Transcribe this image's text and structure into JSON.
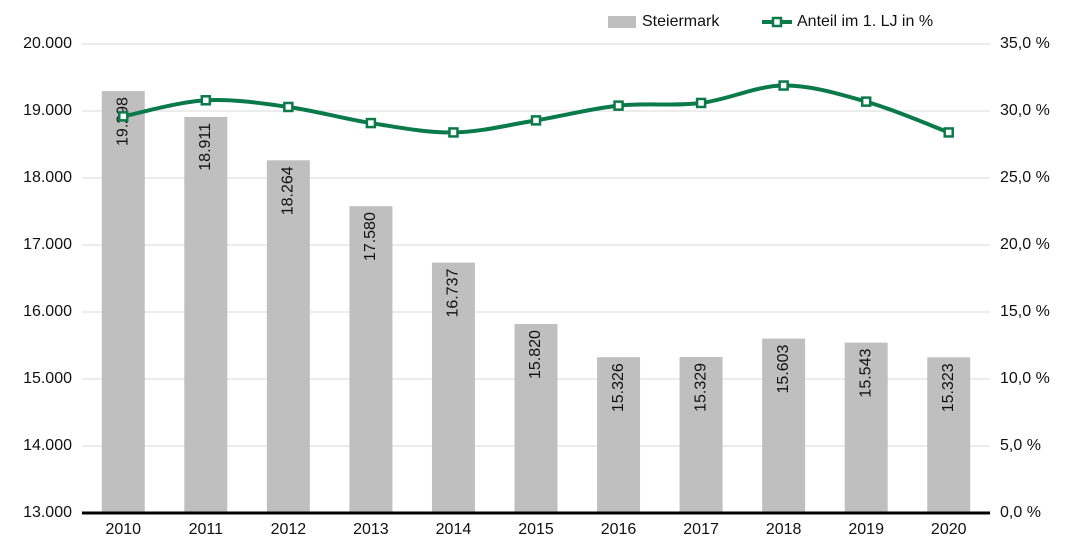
{
  "chart_data": {
    "type": "bar-line",
    "categories": [
      "2010",
      "2011",
      "2012",
      "2013",
      "2014",
      "2015",
      "2016",
      "2017",
      "2018",
      "2019",
      "2020"
    ],
    "series": [
      {
        "name": "Steiermark",
        "color": "#bfbfbf",
        "type": "bar",
        "values": [
          19298,
          18911,
          18264,
          17580,
          16737,
          15820,
          15326,
          15329,
          15603,
          15543,
          15323
        ],
        "value_labels": [
          "19.298",
          "18.911",
          "18.264",
          "17.580",
          "16.737",
          "15.820",
          "15.326",
          "15.329",
          "15.603",
          "15.543",
          "15.323"
        ]
      },
      {
        "name": "Anteil im 1. LJ in %",
        "color": "#0a7a4a",
        "type": "line",
        "axis": "y2",
        "values": [
          29.6,
          30.8,
          30.3,
          29.1,
          28.4,
          29.3,
          30.4,
          30.6,
          31.9,
          30.7,
          28.4
        ]
      }
    ],
    "ylim": [
      13000,
      20000
    ],
    "yticks": [
      {
        "value": 13000,
        "label": "13.000"
      },
      {
        "value": 14000,
        "label": "14.000"
      },
      {
        "value": 15000,
        "label": "15.000"
      },
      {
        "value": 16000,
        "label": "16.000"
      },
      {
        "value": 17000,
        "label": "17.000"
      },
      {
        "value": 18000,
        "label": "18.000"
      },
      {
        "value": 19000,
        "label": "19.000"
      },
      {
        "value": 20000,
        "label": "20.000"
      }
    ],
    "y2lim": [
      0,
      35
    ],
    "y2ticks": [
      {
        "value": 0,
        "label": "0,0 %"
      },
      {
        "value": 5,
        "label": "5,0 %"
      },
      {
        "value": 10,
        "label": "10,0 %"
      },
      {
        "value": 15,
        "label": "15,0 %"
      },
      {
        "value": 20,
        "label": "20,0 %"
      },
      {
        "value": 25,
        "label": "25,0 %"
      },
      {
        "value": 30,
        "label": "30,0 %"
      },
      {
        "value": 35,
        "label": "35,0 %"
      }
    ],
    "grid": true,
    "legend": "top-right"
  }
}
